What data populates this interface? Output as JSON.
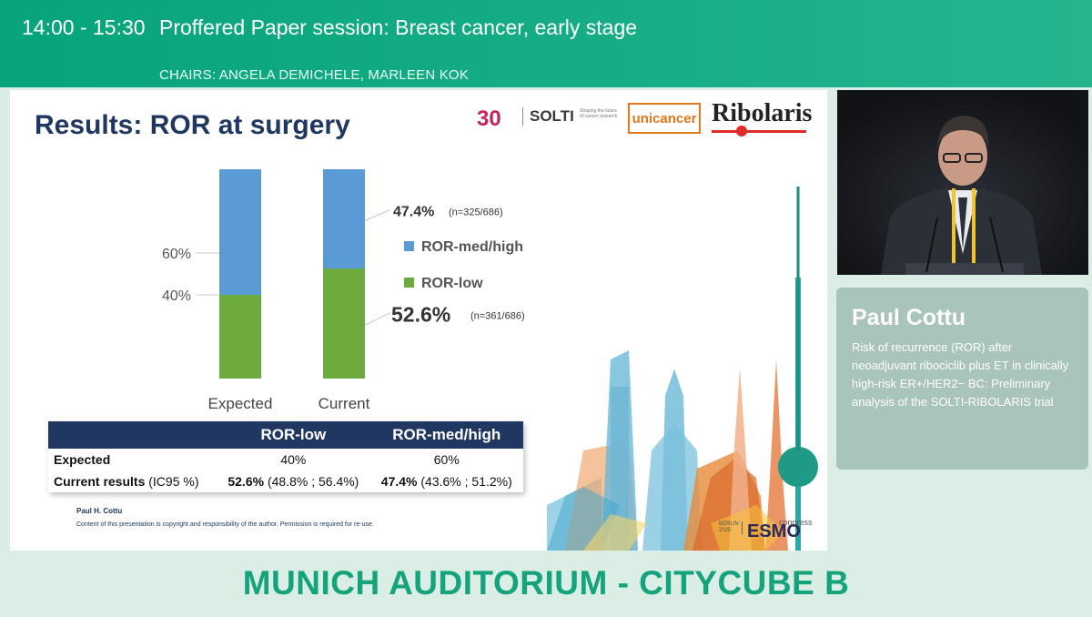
{
  "header": {
    "time": "14:00 - 15:30",
    "session_title": "Proffered Paper session: Breast cancer, early stage",
    "chairs": "CHAIRS: ANGELA DEMICHELE, MARLEEN KOK"
  },
  "slide": {
    "title": "Results: ROR at surgery",
    "logos": {
      "anniversary": "30",
      "solti": "SOLTI",
      "solti_tagline": "Shaping the future of cancer research",
      "unicancer": "unicancer",
      "ribolaris": "Ribolaris"
    },
    "footer_author": "Paul H. Cottu",
    "footer_note": "Content of this presentation is copyright and responsibility of the author. Permission is required for re-use.",
    "event_logo": {
      "small_text_1": "BERLIN",
      "small_text_2": "2025",
      "brand": "ESMO",
      "suffix": "congress"
    }
  },
  "chart_data": {
    "type": "bar",
    "stacked": true,
    "categories": [
      "Expected",
      "Current"
    ],
    "series": [
      {
        "name": "ROR-low",
        "values": [
          40,
          52.6
        ],
        "color": "#6bab3e"
      },
      {
        "name": "ROR-med/high",
        "values": [
          60,
          47.4
        ],
        "color": "#5b9bd5"
      }
    ],
    "y_tick_labels": [
      "60%",
      "40%"
    ],
    "y_ticks": [
      60,
      40
    ],
    "annotations": [
      {
        "value_label": "47.4%",
        "n_label": "(n=325/686)"
      },
      {
        "value_label": "52.6%",
        "n_label": "(n=361/686)"
      }
    ],
    "legend": [
      "ROR-med/high",
      "ROR-low"
    ],
    "legend_position": "right",
    "grid": false
  },
  "table": {
    "headers": [
      "",
      "ROR-low",
      "ROR-med/high"
    ],
    "rows": [
      {
        "label": "Expected",
        "label_suffix": "",
        "low": "40%",
        "low_ci": "",
        "high": "60%",
        "high_ci": ""
      },
      {
        "label": "Current results",
        "label_suffix": " (IC95 %)",
        "low": "52.6%",
        "low_ci": " (48.8% ; 56.4%)",
        "high": "47.4%",
        "high_ci": " (43.6% ; 51.2%)"
      }
    ]
  },
  "speaker": {
    "name": "Paul Cottu",
    "talk": "Risk of recurrence (ROR) after neoadjuvant ribociclib plus ET in clinically high-risk ER+/HER2− BC: Preliminary analysis of the SOLTI-RIBOLARIS trial"
  },
  "room": "MUNICH AUDITORIUM - CITYCUBE B",
  "colors": {
    "brand_green": "#15a37c",
    "slide_navy": "#1f3761",
    "bar_blue": "#5b9bd5",
    "bar_green": "#6bab3e"
  }
}
